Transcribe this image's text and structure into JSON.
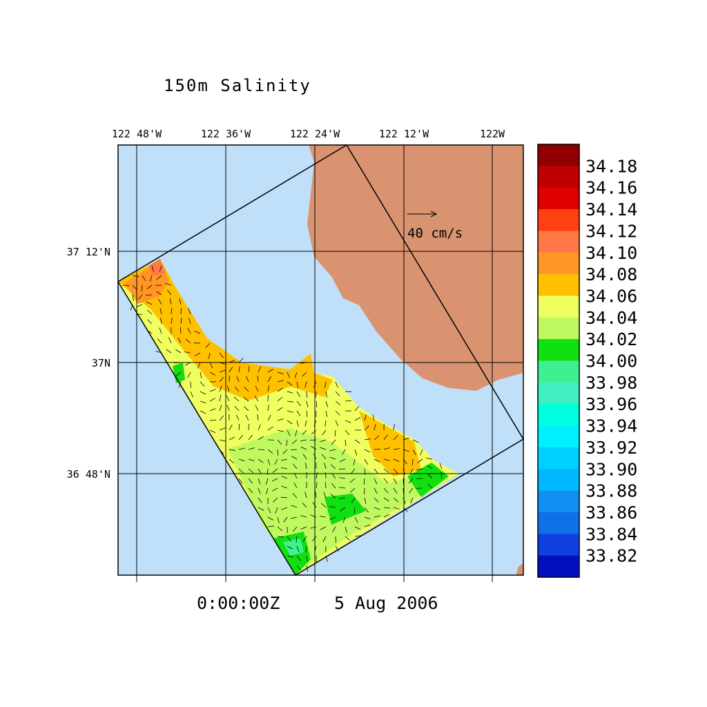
{
  "title": "150m Salinity",
  "longitude_labels": [
    "122 48'W",
    "122 36'W",
    "122 24'W",
    "122 12'W",
    "122W"
  ],
  "latitude_labels": [
    "37 12'N",
    "37N",
    "36 48'N"
  ],
  "vector_scale_label": "40 cm/s",
  "time_label": "0:00:00Z",
  "date_label": "5 Aug 2006",
  "colorbar": {
    "labels": [
      "34.18",
      "34.16",
      "34.14",
      "34.12",
      "34.10",
      "34.08",
      "34.06",
      "34.04",
      "34.02",
      "34.00",
      "33.98",
      "33.96",
      "33.94",
      "33.92",
      "33.90",
      "33.88",
      "33.86",
      "33.84",
      "33.82"
    ],
    "colors": [
      "#900000",
      "#c00000",
      "#e00000",
      "#ff4010",
      "#ff7845",
      "#ff9625",
      "#ffc000",
      "#f0ff60",
      "#c0f860",
      "#10e010",
      "#40f090",
      "#40f0c0",
      "#00ffe0",
      "#00f0ff",
      "#00d0ff",
      "#00b8ff",
      "#1090f0",
      "#1070e8",
      "#1040e0",
      "#0010c0"
    ]
  }
}
